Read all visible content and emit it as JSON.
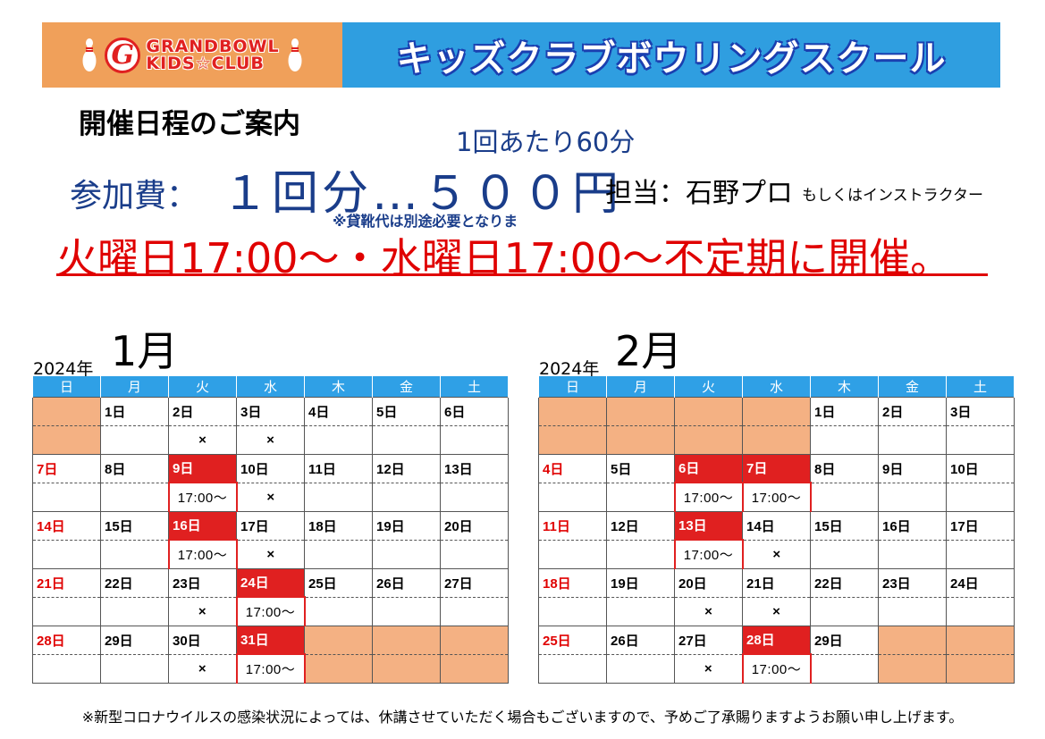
{
  "banner": {
    "logo_letter": "G",
    "logo_line1": "GRANDBOWL",
    "logo_line2": "KIDS☆CLUB",
    "title": "キッズクラブボウリングスクール",
    "brand_orange": "#f0a05a",
    "brand_blue": "#2f9ee0"
  },
  "info": {
    "heading": "開催日程のご案内",
    "duration": "1回あたり60分",
    "fee_label": "参加費：",
    "fee_value": "１回分…５００円",
    "staff": "担当：石野プロ",
    "staff_alt": "もしくはインストラクター",
    "shoes_note": "※貸靴代は別途必要となりま",
    "schedule": "火曜日17:00～・水曜日17:00～不定期に開催。"
  },
  "calendar_colors": {
    "held": "#e02020",
    "empty": "#f4b183",
    "header": "#2fa0e6",
    "sunday": "#e00000"
  },
  "weekdays": [
    "日",
    "月",
    "火",
    "水",
    "木",
    "金",
    "土"
  ],
  "calendars": [
    {
      "year": "2024年",
      "month": "1月",
      "weeks": [
        {
          "days": [
            "",
            "1日",
            "2日",
            "3日",
            "4日",
            "5日",
            "6日"
          ],
          "slots": [
            "",
            "",
            "×",
            "×",
            "",
            "",
            ""
          ]
        },
        {
          "days": [
            "7日",
            "8日",
            "9日",
            "10日",
            "11日",
            "12日",
            "13日"
          ],
          "slots": [
            "",
            "",
            "17:00～",
            "×",
            "",
            "",
            ""
          ]
        },
        {
          "days": [
            "14日",
            "15日",
            "16日",
            "17日",
            "18日",
            "19日",
            "20日"
          ],
          "slots": [
            "",
            "",
            "17:00～",
            "×",
            "",
            "",
            ""
          ]
        },
        {
          "days": [
            "21日",
            "22日",
            "23日",
            "24日",
            "25日",
            "26日",
            "27日"
          ],
          "slots": [
            "",
            "",
            "×",
            "17:00～",
            "",
            "",
            ""
          ]
        },
        {
          "days": [
            "28日",
            "29日",
            "30日",
            "31日",
            "",
            "",
            ""
          ],
          "slots": [
            "",
            "",
            "×",
            "17:00～",
            "",
            "",
            ""
          ]
        }
      ]
    },
    {
      "year": "2024年",
      "month": "2月",
      "weeks": [
        {
          "days": [
            "",
            "",
            "",
            "",
            "1日",
            "2日",
            "3日"
          ],
          "slots": [
            "",
            "",
            "",
            "",
            "",
            "",
            ""
          ]
        },
        {
          "days": [
            "4日",
            "5日",
            "6日",
            "7日",
            "8日",
            "9日",
            "10日"
          ],
          "slots": [
            "",
            "",
            "17:00～",
            "17:00～",
            "",
            "",
            ""
          ]
        },
        {
          "days": [
            "11日",
            "12日",
            "13日",
            "14日",
            "15日",
            "16日",
            "17日"
          ],
          "slots": [
            "",
            "",
            "17:00～",
            "×",
            "",
            "",
            ""
          ]
        },
        {
          "days": [
            "18日",
            "19日",
            "20日",
            "21日",
            "22日",
            "23日",
            "24日"
          ],
          "slots": [
            "",
            "",
            "×",
            "×",
            "",
            "",
            ""
          ]
        },
        {
          "days": [
            "25日",
            "26日",
            "27日",
            "28日",
            "29日",
            "",
            ""
          ],
          "slots": [
            "",
            "",
            "×",
            "17:00～",
            "",
            "",
            ""
          ]
        }
      ]
    }
  ],
  "footer": "※新型コロナウイルスの感染状況によっては、休講させていただく場合もございますので、予めご了承賜りますようお願い申し上げます。"
}
